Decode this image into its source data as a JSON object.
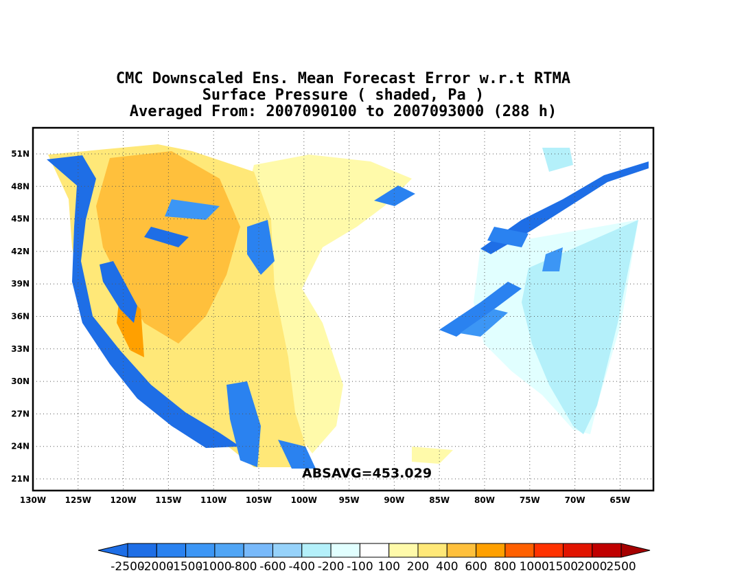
{
  "title": {
    "line1": "CMC Downscaled Ens. Mean Forecast Error w.r.t RTMA",
    "line2": "Surface Pressure ( shaded, Pa )",
    "line3": "Averaged From: 2007090100 to 2007093000 (288 h)"
  },
  "map": {
    "lon_ticks": [
      "130W",
      "125W",
      "120W",
      "115W",
      "110W",
      "105W",
      "100W",
      "95W",
      "90W",
      "85W",
      "80W",
      "75W",
      "70W",
      "65W"
    ],
    "lat_ticks": [
      "51N",
      "48N",
      "45N",
      "42N",
      "39N",
      "36N",
      "33N",
      "30N",
      "27N",
      "24N",
      "21N"
    ],
    "absavg_label": "ABSAVG=453.029",
    "grid": "dotted"
  },
  "colorbar": {
    "labels": [
      "-2500",
      "-2000",
      "-1500",
      "-1000",
      "-800",
      "-600",
      "-400",
      "-200",
      "-100",
      "100",
      "200",
      "400",
      "600",
      "800",
      "1000",
      "1500",
      "2000",
      "2500"
    ],
    "colors": [
      "#1e6ee6",
      "#1e6ee6",
      "#2a82f0",
      "#3c96f5",
      "#50a5f5",
      "#78b9fa",
      "#96d2fa",
      "#b4f0fa",
      "#e1ffff",
      "#ffffff",
      "#fffaaa",
      "#ffe878",
      "#ffc03c",
      "#ffa000",
      "#ff6000",
      "#ff3200",
      "#e11400",
      "#c00000",
      "#a50000"
    ]
  }
}
